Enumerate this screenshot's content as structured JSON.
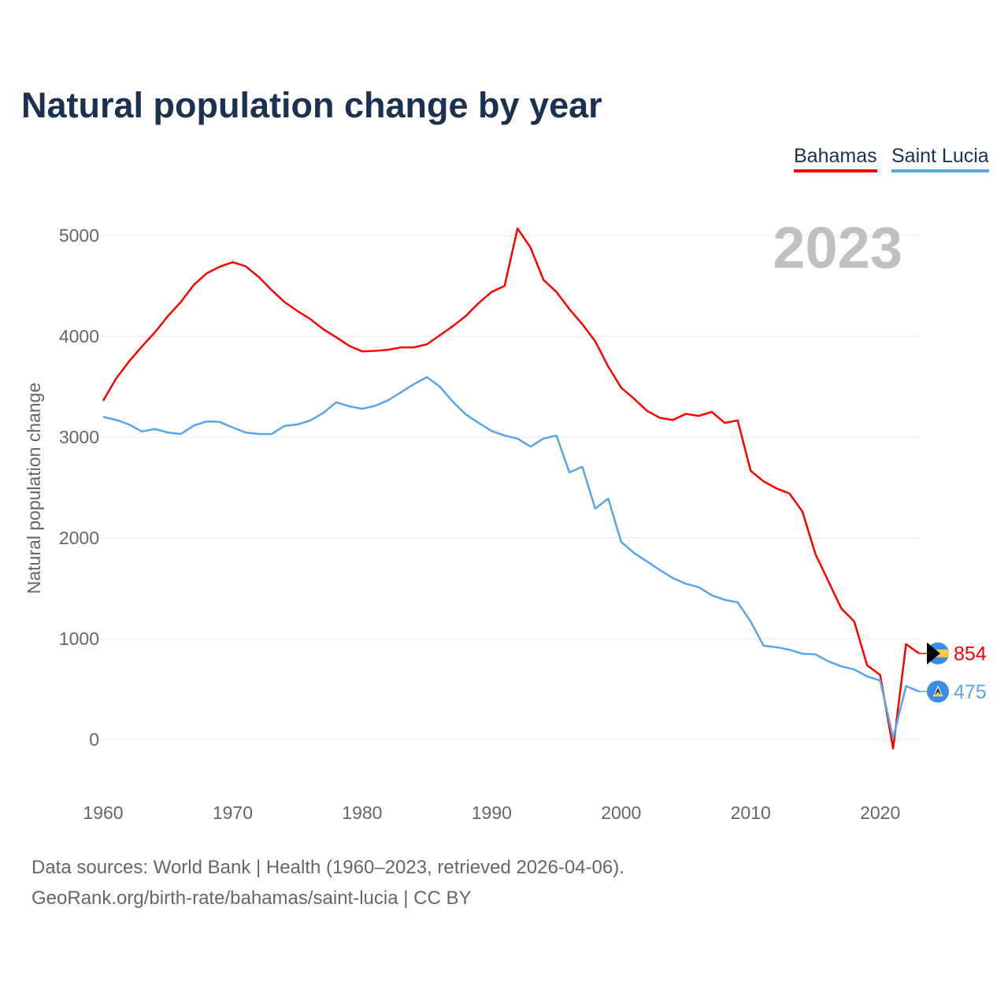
{
  "chart_data": {
    "type": "line",
    "title": "Natural population change by year",
    "ylabel": "Natural population change",
    "xlabel": "",
    "ylim": [
      -300,
      5300
    ],
    "xlim": [
      1960,
      2023
    ],
    "yticks": [
      0,
      1000,
      2000,
      3000,
      4000,
      5000
    ],
    "xticks": [
      1960,
      1970,
      1980,
      1990,
      2000,
      2010,
      2020
    ],
    "grid": true,
    "legend_position": "top-right",
    "year_label": "2023",
    "x": [
      1960,
      1961,
      1962,
      1963,
      1964,
      1965,
      1966,
      1967,
      1968,
      1969,
      1970,
      1971,
      1972,
      1973,
      1974,
      1975,
      1976,
      1977,
      1978,
      1979,
      1980,
      1981,
      1982,
      1983,
      1984,
      1985,
      1986,
      1987,
      1988,
      1989,
      1990,
      1991,
      1992,
      1993,
      1994,
      1995,
      1996,
      1997,
      1998,
      1999,
      2000,
      2001,
      2002,
      2003,
      2004,
      2005,
      2006,
      2007,
      2008,
      2009,
      2010,
      2011,
      2012,
      2013,
      2014,
      2015,
      2016,
      2017,
      2018,
      2019,
      2020,
      2021,
      2022,
      2023
    ],
    "series": [
      {
        "name": "Bahamas",
        "color": "#ff0000",
        "end_label": "854",
        "values": [
          3360,
          3580,
          3750,
          3900,
          4040,
          4200,
          4340,
          4510,
          4625,
          4690,
          4735,
          4695,
          4590,
          4460,
          4340,
          4250,
          4170,
          4070,
          3990,
          3905,
          3850,
          3855,
          3865,
          3890,
          3890,
          3920,
          4010,
          4100,
          4200,
          4330,
          4440,
          4500,
          5070,
          4880,
          4560,
          4440,
          4270,
          4120,
          3950,
          3700,
          3490,
          3380,
          3260,
          3190,
          3170,
          3230,
          3210,
          3250,
          3140,
          3165,
          2665,
          2560,
          2490,
          2440,
          2260,
          1840,
          1570,
          1300,
          1170,
          735,
          640,
          -90,
          945,
          854
        ]
      },
      {
        "name": "Saint Lucia",
        "color": "#5aa5ea",
        "end_label": "475",
        "values": [
          3200,
          3170,
          3125,
          3055,
          3080,
          3045,
          3030,
          3115,
          3155,
          3150,
          3095,
          3045,
          3030,
          3030,
          3110,
          3125,
          3165,
          3240,
          3345,
          3305,
          3280,
          3310,
          3365,
          3445,
          3525,
          3595,
          3500,
          3350,
          3225,
          3140,
          3060,
          3015,
          2985,
          2905,
          2985,
          3015,
          2650,
          2705,
          2290,
          2390,
          1960,
          1850,
          1765,
          1680,
          1600,
          1545,
          1510,
          1430,
          1385,
          1360,
          1170,
          930,
          915,
          890,
          850,
          845,
          775,
          725,
          695,
          625,
          585,
          15,
          530,
          475
        ]
      }
    ]
  },
  "footer": {
    "line1": "Data sources: World Bank | Health (1960–2023, retrieved 2026-04-06).",
    "line2": "GeoRank.org/birth-rate/bahamas/saint-lucia | CC BY"
  }
}
